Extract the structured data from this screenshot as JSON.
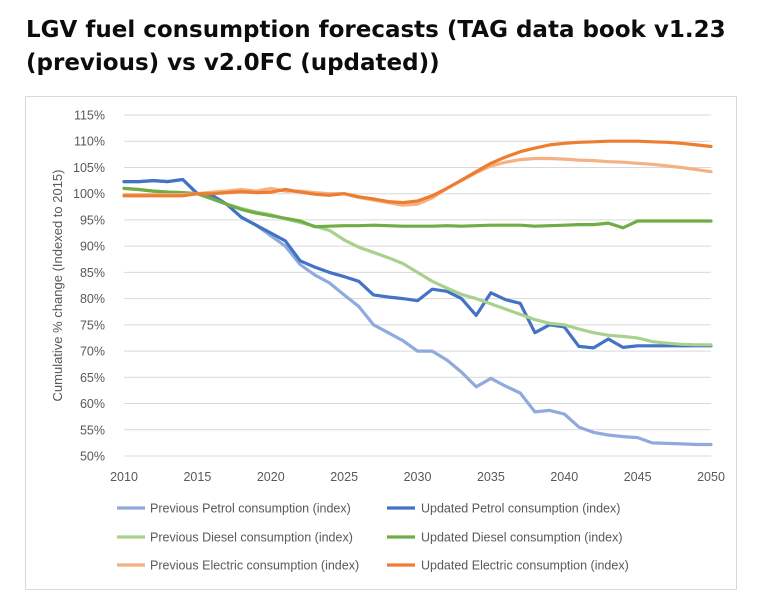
{
  "page": {
    "title": "LGV fuel consumption forecasts (TAG data book v1.23 (previous) vs v2.0FC (updated))"
  },
  "chart_data": {
    "type": "line",
    "title": "",
    "xlabel": "",
    "ylabel": "Cumulative % change (Indexed to 2015)",
    "xlim": [
      2010,
      2050
    ],
    "ylim": [
      50,
      115
    ],
    "x_ticks": [
      2010,
      2015,
      2020,
      2025,
      2030,
      2035,
      2040,
      2045,
      2050
    ],
    "x_tick_labels": [
      "2010",
      "2015",
      "2020",
      "2025",
      "2030",
      "2035",
      "2040",
      "2045",
      "2050"
    ],
    "y_ticks": [
      50,
      55,
      60,
      65,
      70,
      75,
      80,
      85,
      90,
      95,
      100,
      105,
      110,
      115
    ],
    "y_tick_labels": [
      "50%",
      "55%",
      "60%",
      "65%",
      "70%",
      "75%",
      "80%",
      "85%",
      "90%",
      "95%",
      "100%",
      "105%",
      "110%",
      "115%"
    ],
    "grid": "horizontal",
    "legend_position": "bottom",
    "x": [
      2010,
      2011,
      2012,
      2013,
      2014,
      2015,
      2016,
      2017,
      2018,
      2019,
      2020,
      2021,
      2022,
      2023,
      2024,
      2025,
      2026,
      2027,
      2028,
      2029,
      2030,
      2031,
      2032,
      2033,
      2034,
      2035,
      2036,
      2037,
      2038,
      2039,
      2040,
      2041,
      2042,
      2043,
      2044,
      2045,
      2046,
      2047,
      2048,
      2049,
      2050
    ],
    "series": [
      {
        "name": "Previous Petrol consumption (index)",
        "color": "#8faadc",
        "values": [
          102.3,
          102.3,
          102.5,
          102.3,
          102.7,
          100.0,
          99.7,
          98.0,
          95.5,
          94.0,
          92.0,
          90.0,
          86.5,
          84.5,
          83.0,
          80.7,
          78.5,
          75.0,
          73.5,
          72.0,
          70.0,
          70.0,
          68.3,
          66.0,
          63.2,
          64.8,
          63.3,
          62.0,
          58.4,
          58.7,
          58.0,
          55.5,
          54.5,
          54.0,
          53.7,
          53.5,
          52.5,
          52.4,
          52.3,
          52.2,
          52.2
        ]
      },
      {
        "name": "Updated Petrol consumption (index)",
        "color": "#4472c4",
        "values": [
          102.3,
          102.3,
          102.5,
          102.3,
          102.7,
          100.0,
          99.7,
          98.0,
          95.5,
          94.0,
          92.5,
          91.0,
          87.2,
          86.0,
          85.0,
          84.2,
          83.3,
          80.7,
          80.3,
          80.0,
          79.6,
          81.8,
          81.4,
          80.0,
          76.8,
          81.1,
          79.8,
          79.1,
          73.5,
          75.0,
          74.6,
          70.9,
          70.6,
          72.3,
          70.7,
          71.0,
          71.0,
          71.0,
          71.0,
          71.0,
          71.0
        ]
      },
      {
        "name": "Previous Diesel consumption (index)",
        "color": "#a9d18e",
        "values": [
          101.0,
          100.8,
          100.5,
          100.3,
          100.2,
          100.0,
          99.0,
          98.0,
          97.2,
          96.5,
          96.0,
          95.2,
          94.5,
          93.8,
          93.0,
          91.2,
          89.8,
          88.8,
          87.8,
          86.7,
          85.0,
          83.3,
          82.0,
          80.8,
          80.0,
          79.0,
          78.0,
          77.0,
          76.0,
          75.3,
          75.0,
          74.2,
          73.5,
          73.0,
          72.8,
          72.5,
          71.8,
          71.5,
          71.3,
          71.2,
          71.2
        ]
      },
      {
        "name": "Updated Diesel consumption (index)",
        "color": "#70ad47",
        "values": [
          101.0,
          100.8,
          100.5,
          100.3,
          100.2,
          100.0,
          99.0,
          98.0,
          97.0,
          96.3,
          95.8,
          95.3,
          94.8,
          93.7,
          93.8,
          93.9,
          93.9,
          94.0,
          93.9,
          93.8,
          93.8,
          93.8,
          93.9,
          93.8,
          93.9,
          94.0,
          94.0,
          94.0,
          93.8,
          93.9,
          94.0,
          94.1,
          94.1,
          94.4,
          93.5,
          94.8,
          94.8,
          94.8,
          94.8,
          94.8,
          94.8
        ]
      },
      {
        "name": "Previous Electric consumption (index)",
        "color": "#f4b183",
        "values": [
          99.8,
          99.8,
          99.8,
          99.8,
          99.8,
          100.0,
          100.3,
          100.5,
          100.8,
          100.5,
          101.0,
          100.5,
          100.5,
          100.2,
          100.0,
          100.0,
          99.3,
          98.8,
          98.3,
          97.8,
          98.0,
          99.2,
          101.0,
          102.5,
          104.0,
          105.3,
          106.0,
          106.5,
          106.7,
          106.7,
          106.6,
          106.4,
          106.3,
          106.1,
          106.0,
          105.8,
          105.6,
          105.3,
          105.0,
          104.6,
          104.2
        ]
      },
      {
        "name": "Updated Electric consumption (index)",
        "color": "#ed7d31",
        "values": [
          99.6,
          99.6,
          99.6,
          99.6,
          99.6,
          100.0,
          100.0,
          100.2,
          100.4,
          100.2,
          100.3,
          100.8,
          100.3,
          99.9,
          99.7,
          100.0,
          99.4,
          99.0,
          98.5,
          98.3,
          98.6,
          99.6,
          101.0,
          102.6,
          104.2,
          105.8,
          107.0,
          108.0,
          108.7,
          109.3,
          109.6,
          109.8,
          109.9,
          110.0,
          110.0,
          110.0,
          109.9,
          109.8,
          109.6,
          109.3,
          109.0
        ]
      }
    ]
  }
}
